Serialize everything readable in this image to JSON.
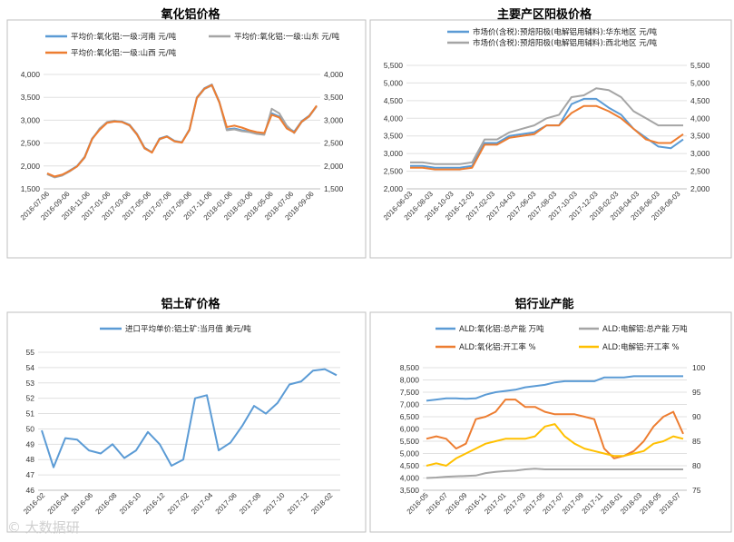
{
  "charts": [
    {
      "title": "氧化铝价格",
      "type": "line",
      "ylim": [
        1500,
        4000
      ],
      "yticks": [
        "1,500",
        "2,000",
        "2,500",
        "3,000",
        "3,500",
        "4,000"
      ],
      "right_axis": true,
      "xticks": [
        "2016-07-06",
        "2016-09-06",
        "2016-11-06",
        "2017-01-06",
        "2017-03-06",
        "2017-05-06",
        "2017-07-06",
        "2017-09-06",
        "2017-11-06",
        "2018-01-06",
        "2018-03-06",
        "2018-05-06",
        "2018-07-06",
        "2018-09-06"
      ],
      "series": [
        {
          "name": "平均价:氧化铝:一级:河南 元/吨",
          "color": "#5b9bd5",
          "values": [
            1830,
            1760,
            1800,
            1900,
            2000,
            2200,
            2600,
            2800,
            2950,
            2980,
            2970,
            2900,
            2700,
            2400,
            2300,
            2600,
            2650,
            2550,
            2520,
            2800,
            3500,
            3700,
            3780,
            3400,
            2800,
            2820,
            2780,
            2750,
            2720,
            2700,
            3150,
            3080,
            2850,
            2750,
            2980,
            3100,
            3310
          ]
        },
        {
          "name": "平均价:氧化铝:一级:山东 元/吨",
          "color": "#a5a5a5",
          "values": [
            1820,
            1750,
            1790,
            1880,
            1990,
            2180,
            2580,
            2820,
            2960,
            2990,
            2960,
            2880,
            2680,
            2380,
            2300,
            2580,
            2640,
            2540,
            2520,
            2780,
            3480,
            3680,
            3760,
            3380,
            2780,
            2800,
            2760,
            2740,
            2700,
            2680,
            3250,
            3150,
            2880,
            2720,
            2960,
            3080,
            3300
          ]
        },
        {
          "name": "平均价:氧化铝:一级:山西 元/吨",
          "color": "#ed7d31",
          "values": [
            1840,
            1770,
            1810,
            1890,
            1990,
            2190,
            2590,
            2790,
            2940,
            2970,
            2960,
            2890,
            2690,
            2390,
            2290,
            2590,
            2640,
            2540,
            2510,
            2790,
            3490,
            3690,
            3770,
            3390,
            2850,
            2880,
            2840,
            2780,
            2740,
            2720,
            3120,
            3060,
            2820,
            2730,
            2970,
            3090,
            3320
          ]
        }
      ]
    },
    {
      "title": "主要产区阳极价格",
      "type": "line",
      "ylim": [
        2000,
        5500
      ],
      "yticks": [
        "2,000",
        "2,500",
        "3,000",
        "3,500",
        "4,000",
        "4,500",
        "5,000",
        "5,500"
      ],
      "right_axis": true,
      "xticks": [
        "2016-06-03",
        "2016-08-03",
        "2016-10-03",
        "2016-12-03",
        "2017-02-03",
        "2017-04-03",
        "2017-06-03",
        "2017-08-03",
        "2017-10-03",
        "2017-12-03",
        "2018-02-03",
        "2018-04-03",
        "2018-06-03",
        "2018-08-03"
      ],
      "series": [
        {
          "name": "市场价(含税):预焙阳极(电解铝用辅料):华东地区 元/吨",
          "color": "#5b9bd5",
          "values": [
            2650,
            2650,
            2600,
            2600,
            2600,
            2650,
            3300,
            3300,
            3500,
            3550,
            3600,
            3800,
            3800,
            4400,
            4550,
            4550,
            4300,
            4100,
            3700,
            3450,
            3200,
            3150,
            3400
          ]
        },
        {
          "name": "市场价(含税):预焙阳极(电解铝用辅料):西北地区 元/吨",
          "color": "#a5a5a5",
          "values": [
            2750,
            2750,
            2700,
            2700,
            2700,
            2750,
            3400,
            3400,
            3600,
            3700,
            3800,
            4000,
            4100,
            4600,
            4650,
            4850,
            4800,
            4600,
            4200,
            4000,
            3800,
            3800,
            3800
          ]
        },
        {
          "name": "",
          "color": "#ed7d31",
          "values": [
            2600,
            2600,
            2550,
            2550,
            2550,
            2600,
            3250,
            3250,
            3450,
            3500,
            3550,
            3800,
            3800,
            4150,
            4350,
            4350,
            4200,
            4000,
            3700,
            3400,
            3300,
            3300,
            3550
          ]
        }
      ]
    },
    {
      "title": "铝土矿价格",
      "type": "line",
      "ylim": [
        46,
        55
      ],
      "yticks": [
        "46",
        "47",
        "48",
        "49",
        "50",
        "51",
        "52",
        "53",
        "54",
        "55"
      ],
      "right_axis": false,
      "xticks": [
        "2016-02",
        "2016-04",
        "2016-06",
        "2016-08",
        "2016-10",
        "2016-12",
        "2017-02",
        "2017-04",
        "2017-06",
        "2017-08",
        "2017-10",
        "2017-12",
        "2018-02"
      ],
      "series": [
        {
          "name": "进口平均单价:铝土矿:当月值 美元/吨",
          "color": "#5b9bd5",
          "values": [
            49.9,
            47.5,
            49.4,
            49.3,
            48.6,
            48.4,
            49.0,
            48.1,
            48.6,
            49.8,
            49.0,
            47.6,
            48.0,
            52.0,
            52.2,
            48.6,
            49.1,
            50.2,
            51.5,
            51.0,
            51.7,
            52.9,
            53.1,
            53.8,
            53.9,
            53.5
          ]
        }
      ]
    },
    {
      "title": "铝行业产能",
      "type": "line",
      "ylim": [
        3500,
        8500
      ],
      "yticks": [
        "3,500",
        "4,000",
        "4,500",
        "5,000",
        "5,500",
        "6,000",
        "6,500",
        "7,000",
        "7,500",
        "8,000",
        "8,500"
      ],
      "right_ylim": [
        75,
        100
      ],
      "right_yticks": [
        "75",
        "80",
        "85",
        "90",
        "95",
        "100"
      ],
      "right_axis": true,
      "xticks": [
        "2016-05",
        "2016-07",
        "2016-09",
        "2016-11",
        "2017-01",
        "2017-03",
        "2017-05",
        "2017-07",
        "2017-09",
        "2017-11",
        "2018-01",
        "2018-03",
        "2018-05",
        "2018-07"
      ],
      "series": [
        {
          "name": "ALD:氧化铝:总产能 万吨",
          "color": "#5b9bd5",
          "axis": "left",
          "values": [
            7150,
            7200,
            7250,
            7250,
            7230,
            7250,
            7400,
            7500,
            7550,
            7600,
            7700,
            7750,
            7800,
            7900,
            7950,
            7950,
            7950,
            7950,
            8100,
            8100,
            8100,
            8150,
            8150,
            8150,
            8150,
            8150,
            8150
          ]
        },
        {
          "name": "ALD:电解铝:总产能 万吨",
          "color": "#a5a5a5",
          "axis": "left",
          "values": [
            4000,
            4020,
            4050,
            4070,
            4080,
            4100,
            4200,
            4250,
            4280,
            4300,
            4350,
            4380,
            4350,
            4350,
            4350,
            4350,
            4350,
            4350,
            4350,
            4350,
            4350,
            4350,
            4350,
            4350,
            4350,
            4350,
            4350
          ]
        },
        {
          "name": "ALD:氧化铝:开工率 %",
          "color": "#ed7d31",
          "axis": "right",
          "values": [
            85.5,
            86,
            85.5,
            83.5,
            84.5,
            89.5,
            90,
            91,
            93.5,
            93.5,
            92,
            92,
            91,
            90.5,
            90.5,
            90.5,
            90,
            89.5,
            83.5,
            81.5,
            82,
            83,
            85,
            88,
            90,
            91,
            86.5
          ]
        },
        {
          "name": "ALD:电解铝:开工率 %",
          "color": "#ffc000",
          "axis": "right",
          "values": [
            80,
            80.5,
            80,
            81.5,
            82.5,
            83.5,
            84.5,
            85,
            85.5,
            85.5,
            85.5,
            86,
            88,
            88.5,
            86,
            84.5,
            83.5,
            83,
            82.5,
            82,
            82,
            82.5,
            83,
            84.5,
            85,
            86,
            85.5
          ]
        }
      ]
    }
  ],
  "watermark": "© 大数据研"
}
